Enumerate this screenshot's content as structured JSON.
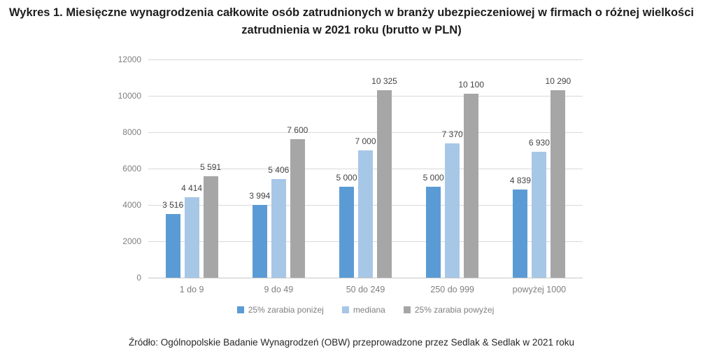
{
  "title": "Wykres 1. Miesięczne wynagrodzenia całkowite osób zatrudnionych w branży ubezpieczeniowej w firmach o różnej wielkości zatrudnienia w 2021 roku (brutto w PLN)",
  "source": "Źródło: Ogólnopolskie Badanie Wynagrodzeń (OBW) przeprowadzone przez Sedlak & Sedlak w 2021 roku",
  "colors": {
    "series_below": "#5B9BD5",
    "series_median": "#A7C7E7",
    "series_above": "#A6A6A6",
    "gridline": "#D9D9D9",
    "axis_text": "#7F7F7F",
    "value_label_text": "#444444",
    "title_text": "#1D1D1F"
  },
  "chart_data": {
    "type": "bar",
    "title": "Wykres 1. Miesięczne wynagrodzenia całkowite osób zatrudnionych w branży ubezpieczeniowej w firmach o różnej wielkości zatrudnienia w 2021 roku (brutto w PLN)",
    "categories": [
      "1 do 9",
      "9 do 49",
      "50 do 249",
      "250 do 999",
      "powyżej 1000"
    ],
    "series": [
      {
        "name": "25% zarabia poniżej",
        "color": "#5B9BD5",
        "values": [
          3516,
          3994,
          5000,
          5000,
          4839
        ]
      },
      {
        "name": "mediana",
        "color": "#A7C7E7",
        "values": [
          4414,
          5406,
          7000,
          7370,
          6930
        ]
      },
      {
        "name": "25% zarabia powyżej",
        "color": "#A6A6A6",
        "values": [
          5591,
          7600,
          10325,
          10100,
          10290
        ]
      }
    ],
    "xlabel": "",
    "ylabel": "",
    "ylim": [
      0,
      12000
    ],
    "yticks": [
      0,
      2000,
      4000,
      6000,
      8000,
      10000,
      12000
    ],
    "grid": true,
    "legend_position": "bottom",
    "data_labels": true,
    "value_label_thousands_separator": " "
  }
}
